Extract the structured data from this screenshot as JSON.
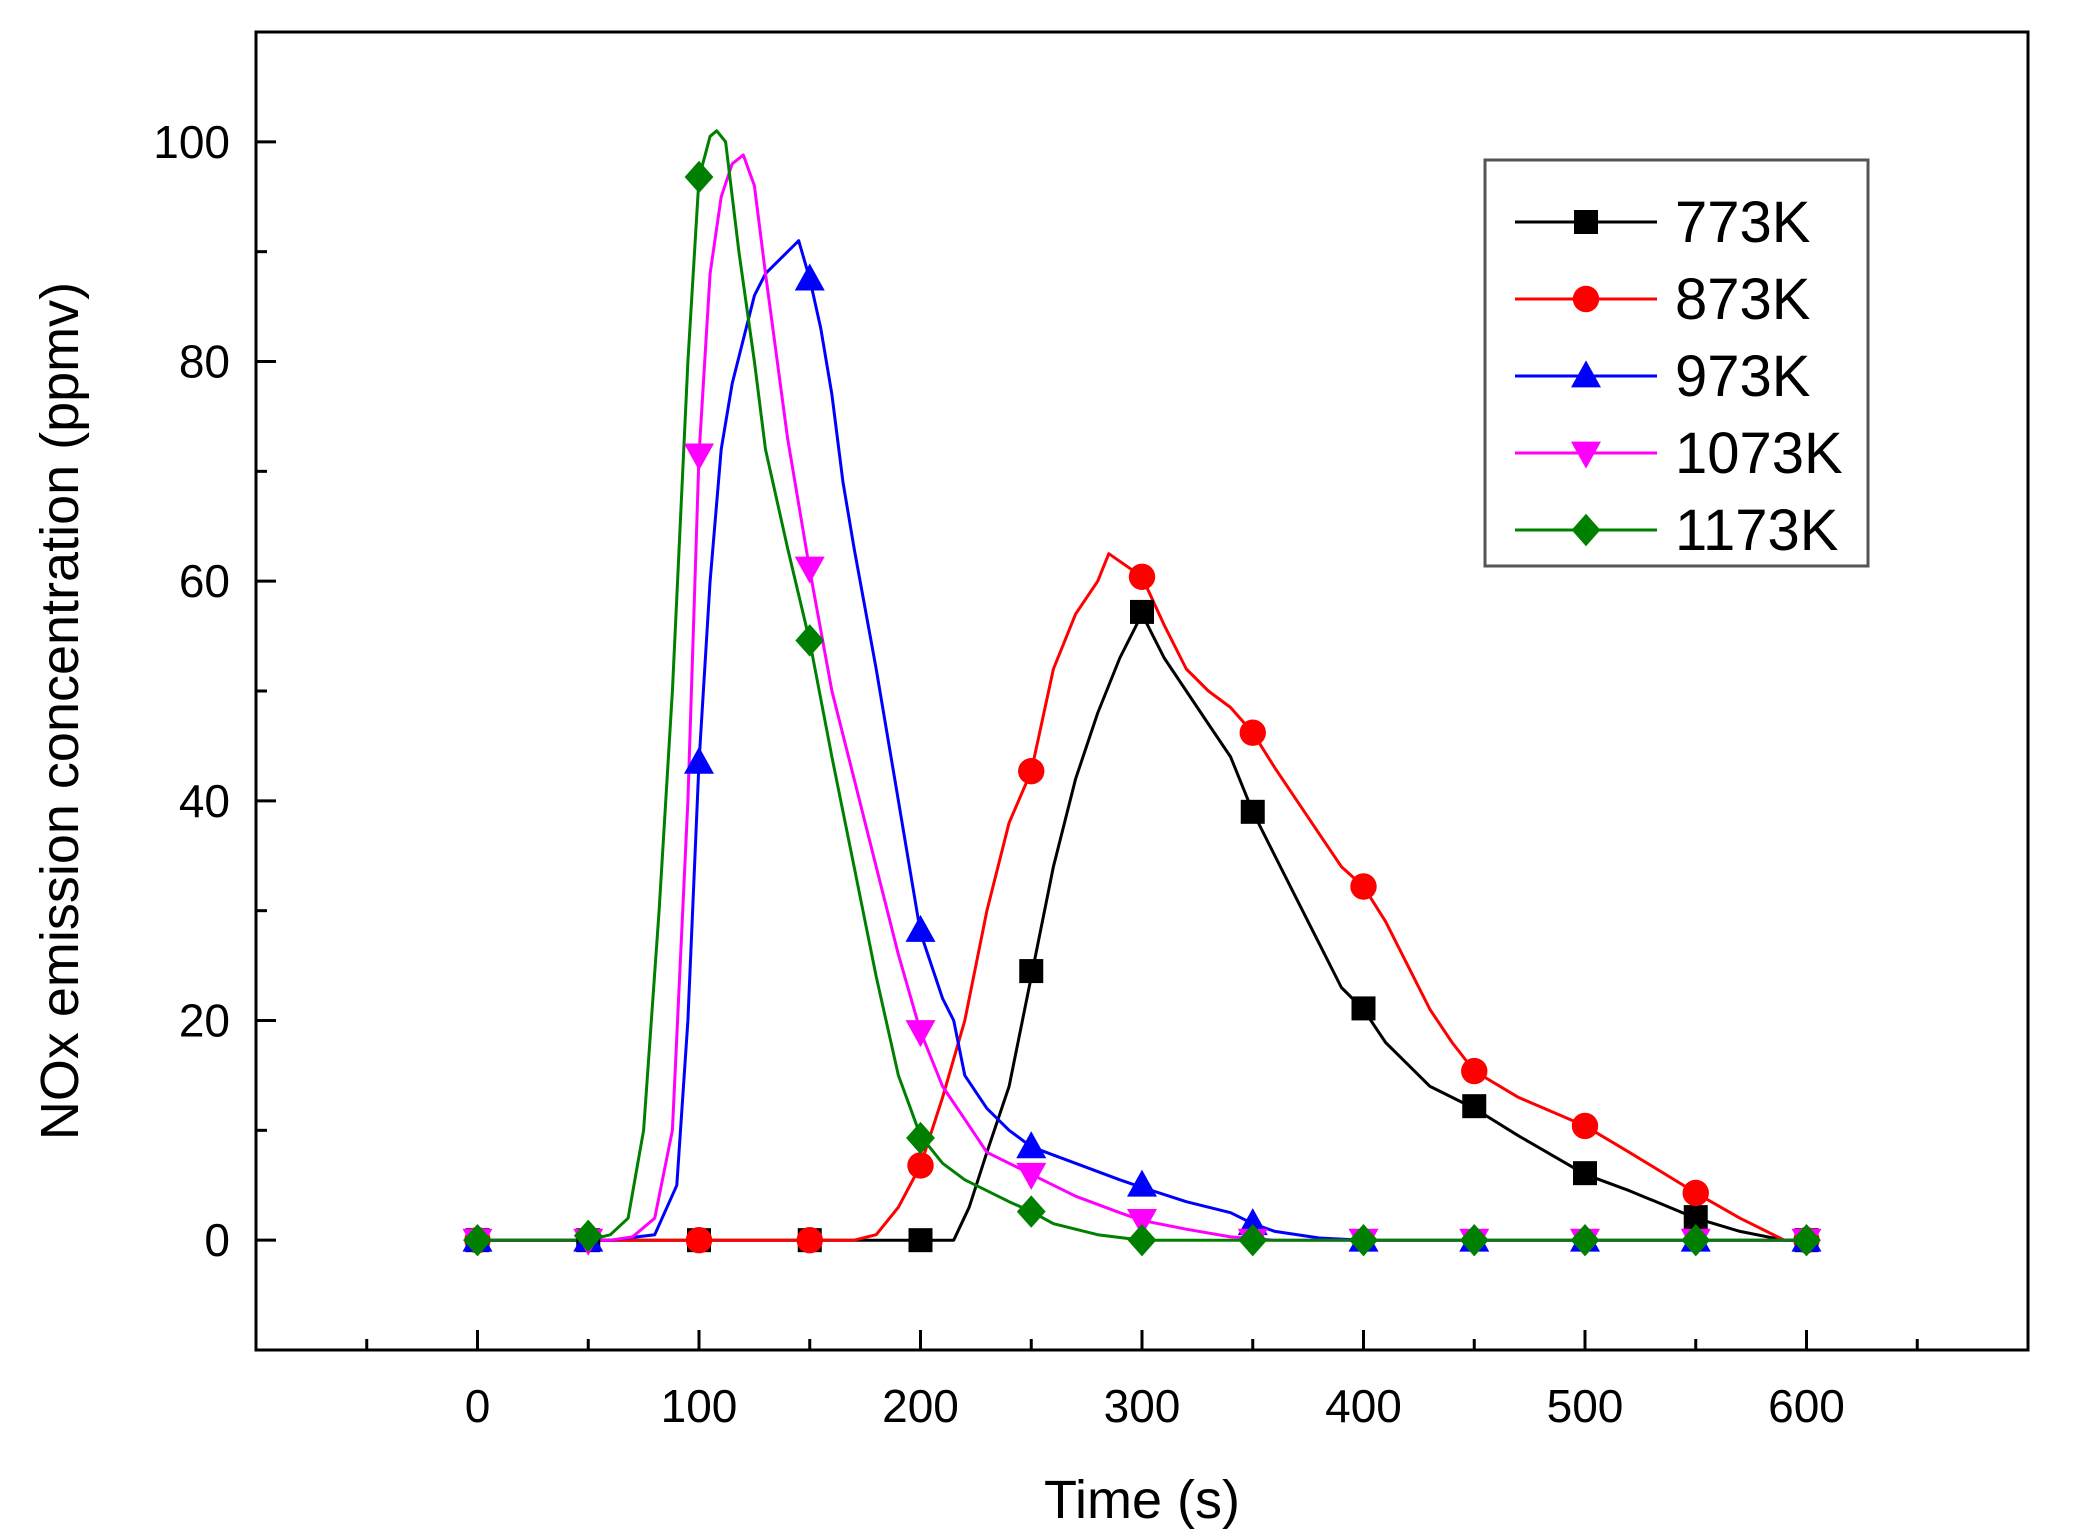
{
  "chart_data": {
    "type": "line",
    "title": "",
    "xlabel": "Time (s)",
    "ylabel": "NOx emission concentration (ppmv)",
    "xlim": [
      -100,
      700
    ],
    "ylim": [
      -10,
      110
    ],
    "x_ticks": [
      0,
      100,
      200,
      300,
      400,
      500,
      600
    ],
    "x_tick_labels": [
      "0",
      "100",
      "200",
      "300",
      "400",
      "500",
      "600"
    ],
    "x_minor_ticks": [
      -50,
      50,
      150,
      250,
      350,
      450,
      550,
      650
    ],
    "y_ticks": [
      0,
      20,
      40,
      60,
      80,
      100
    ],
    "y_tick_labels": [
      "0",
      "20",
      "40",
      "60",
      "80",
      "100"
    ],
    "y_minor_ticks": [
      10,
      30,
      50,
      70,
      90
    ],
    "legend_position": "top-right",
    "series": [
      {
        "name": "773K",
        "color": "#000000",
        "marker": "square",
        "line": [
          [
            0,
            0
          ],
          [
            200,
            0
          ],
          [
            215,
            0
          ],
          [
            222,
            3
          ],
          [
            230,
            8
          ],
          [
            240,
            14
          ],
          [
            250,
            24
          ],
          [
            260,
            34
          ],
          [
            270,
            42
          ],
          [
            280,
            48
          ],
          [
            290,
            53
          ],
          [
            300,
            57
          ],
          [
            310,
            53
          ],
          [
            320,
            50
          ],
          [
            330,
            47
          ],
          [
            340,
            44
          ],
          [
            350,
            39
          ],
          [
            360,
            35
          ],
          [
            370,
            31
          ],
          [
            380,
            27
          ],
          [
            390,
            23
          ],
          [
            400,
            21
          ],
          [
            410,
            18
          ],
          [
            420,
            16
          ],
          [
            430,
            14
          ],
          [
            450,
            12
          ],
          [
            470,
            9.5
          ],
          [
            500,
            6
          ],
          [
            520,
            4.5
          ],
          [
            550,
            2
          ],
          [
            570,
            0.8
          ],
          [
            590,
            0
          ],
          [
            600,
            0
          ]
        ],
        "markers": [
          [
            0,
            0
          ],
          [
            50,
            0
          ],
          [
            100,
            0
          ],
          [
            150,
            0
          ],
          [
            200,
            0
          ],
          [
            250,
            24.5
          ],
          [
            300,
            57.2
          ],
          [
            350,
            39
          ],
          [
            400,
            21.1
          ],
          [
            450,
            12.2
          ],
          [
            500,
            6.1
          ],
          [
            550,
            2.1
          ],
          [
            600,
            0
          ]
        ]
      },
      {
        "name": "873K",
        "color": "#ff0000",
        "marker": "circle",
        "line": [
          [
            0,
            0
          ],
          [
            170,
            0
          ],
          [
            180,
            0.5
          ],
          [
            190,
            3
          ],
          [
            200,
            6.8
          ],
          [
            210,
            13
          ],
          [
            220,
            20
          ],
          [
            230,
            30
          ],
          [
            240,
            38
          ],
          [
            250,
            42.7
          ],
          [
            260,
            52
          ],
          [
            270,
            57
          ],
          [
            280,
            60
          ],
          [
            285,
            62.5
          ],
          [
            300,
            60.4
          ],
          [
            310,
            56
          ],
          [
            320,
            52
          ],
          [
            330,
            50
          ],
          [
            340,
            48.5
          ],
          [
            350,
            46.2
          ],
          [
            360,
            43
          ],
          [
            370,
            40
          ],
          [
            380,
            37
          ],
          [
            390,
            34
          ],
          [
            400,
            32.2
          ],
          [
            410,
            29
          ],
          [
            420,
            25
          ],
          [
            430,
            21
          ],
          [
            440,
            18
          ],
          [
            450,
            15.4
          ],
          [
            470,
            13
          ],
          [
            500,
            10.4
          ],
          [
            520,
            8
          ],
          [
            550,
            4.3
          ],
          [
            570,
            2
          ],
          [
            590,
            0
          ],
          [
            600,
            0
          ]
        ],
        "markers": [
          [
            0,
            0
          ],
          [
            100,
            0
          ],
          [
            150,
            0
          ],
          [
            200,
            6.8
          ],
          [
            250,
            42.7
          ],
          [
            300,
            60.4
          ],
          [
            350,
            46.2
          ],
          [
            400,
            32.2
          ],
          [
            450,
            15.4
          ],
          [
            500,
            10.4
          ],
          [
            550,
            4.3
          ],
          [
            600,
            0
          ]
        ]
      },
      {
        "name": "973K",
        "color": "#0000ff",
        "marker": "triangle-up",
        "line": [
          [
            0,
            0
          ],
          [
            60,
            0
          ],
          [
            80,
            0.5
          ],
          [
            90,
            5
          ],
          [
            95,
            20
          ],
          [
            100,
            43.5
          ],
          [
            105,
            60
          ],
          [
            110,
            72
          ],
          [
            115,
            78
          ],
          [
            120,
            82
          ],
          [
            125,
            86
          ],
          [
            130,
            88
          ],
          [
            135,
            89
          ],
          [
            140,
            90
          ],
          [
            145,
            91
          ],
          [
            150,
            87.5
          ],
          [
            155,
            83
          ],
          [
            160,
            77
          ],
          [
            165,
            69
          ],
          [
            170,
            63
          ],
          [
            180,
            52
          ],
          [
            190,
            40
          ],
          [
            200,
            28
          ],
          [
            210,
            22
          ],
          [
            215,
            20
          ],
          [
            220,
            15
          ],
          [
            230,
            12
          ],
          [
            240,
            10
          ],
          [
            250,
            8.5
          ],
          [
            270,
            7
          ],
          [
            290,
            5.5
          ],
          [
            300,
            4.8
          ],
          [
            320,
            3.5
          ],
          [
            340,
            2.5
          ],
          [
            350,
            1.5
          ],
          [
            360,
            0.8
          ],
          [
            380,
            0.2
          ],
          [
            400,
            0
          ],
          [
            450,
            0
          ],
          [
            600,
            0
          ]
        ],
        "markers": [
          [
            0,
            0
          ],
          [
            50,
            0
          ],
          [
            100,
            43.5
          ],
          [
            150,
            87.5
          ],
          [
            200,
            28.2
          ],
          [
            250,
            8.5
          ],
          [
            300,
            5
          ],
          [
            350,
            1.5
          ],
          [
            400,
            0
          ],
          [
            450,
            0
          ],
          [
            500,
            0
          ],
          [
            550,
            0
          ],
          [
            600,
            0
          ]
        ]
      },
      {
        "name": "1073K",
        "color": "#ff00ff",
        "marker": "triangle-down",
        "line": [
          [
            0,
            0
          ],
          [
            60,
            0
          ],
          [
            70,
            0.3
          ],
          [
            80,
            2
          ],
          [
            88,
            10
          ],
          [
            95,
            40
          ],
          [
            100,
            71.5
          ],
          [
            105,
            88
          ],
          [
            110,
            95
          ],
          [
            115,
            98
          ],
          [
            120,
            98.8
          ],
          [
            125,
            96
          ],
          [
            130,
            88
          ],
          [
            140,
            73
          ],
          [
            150,
            61
          ],
          [
            160,
            50
          ],
          [
            170,
            42
          ],
          [
            180,
            34
          ],
          [
            190,
            26
          ],
          [
            200,
            19
          ],
          [
            210,
            14
          ],
          [
            220,
            11
          ],
          [
            230,
            8
          ],
          [
            250,
            6
          ],
          [
            270,
            4
          ],
          [
            290,
            2.5
          ],
          [
            300,
            1.8
          ],
          [
            320,
            1
          ],
          [
            340,
            0.3
          ],
          [
            360,
            0
          ],
          [
            600,
            0
          ]
        ],
        "markers": [
          [
            0,
            0
          ],
          [
            50,
            0
          ],
          [
            100,
            71.5
          ],
          [
            150,
            61.2
          ],
          [
            200,
            19
          ],
          [
            250,
            6
          ],
          [
            300,
            1.8
          ],
          [
            350,
            0
          ],
          [
            400,
            0
          ],
          [
            450,
            0
          ],
          [
            500,
            0
          ],
          [
            550,
            0
          ],
          [
            600,
            0
          ]
        ]
      },
      {
        "name": "1173K",
        "color": "#008000",
        "marker": "diamond",
        "line": [
          [
            0,
            0
          ],
          [
            50,
            0
          ],
          [
            60,
            0.5
          ],
          [
            68,
            2
          ],
          [
            75,
            10
          ],
          [
            82,
            30
          ],
          [
            88,
            50
          ],
          [
            95,
            80
          ],
          [
            100,
            96.7
          ],
          [
            105,
            100.5
          ],
          [
            108,
            101
          ],
          [
            112,
            100
          ],
          [
            118,
            90
          ],
          [
            125,
            80
          ],
          [
            130,
            72
          ],
          [
            140,
            63
          ],
          [
            150,
            54.5
          ],
          [
            160,
            44
          ],
          [
            170,
            34
          ],
          [
            180,
            24
          ],
          [
            190,
            15
          ],
          [
            200,
            9.5
          ],
          [
            210,
            7
          ],
          [
            220,
            5.5
          ],
          [
            230,
            4.5
          ],
          [
            240,
            3.5
          ],
          [
            250,
            2.6
          ],
          [
            260,
            1.5
          ],
          [
            270,
            1
          ],
          [
            280,
            0.5
          ],
          [
            300,
            0
          ],
          [
            600,
            0
          ]
        ],
        "markers": [
          [
            0,
            0
          ],
          [
            50,
            0.4
          ],
          [
            100,
            96.8
          ],
          [
            150,
            54.6
          ],
          [
            200,
            9.3
          ],
          [
            250,
            2.6
          ],
          [
            300,
            0
          ],
          [
            350,
            0
          ],
          [
            400,
            0
          ],
          [
            450,
            0
          ],
          [
            500,
            0
          ],
          [
            550,
            0
          ],
          [
            600,
            0
          ]
        ]
      }
    ]
  }
}
